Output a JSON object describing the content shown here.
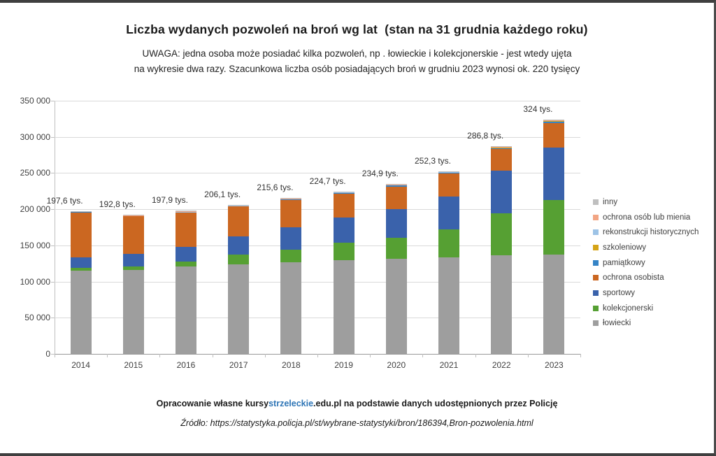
{
  "page": {
    "title": "Liczba wydanych pozwoleń na broń wg lat  (stan na 31 grudnia każdego roku)",
    "subtitle_line1": "UWAGA: jedna osoba może posiadać kilka pozwoleń, np . łowieckie i kolekcjonerskie - jest wtedy ujęta",
    "subtitle_line2": "na wykresie dwa razy. Szacunkowa liczba osób posiadających broń w grudniu 2023 wynosi ok. 220 tysięcy",
    "footer": {
      "line1_prefix": "Opracowanie własne kursy",
      "line1_highlight": "strzeleckie",
      "line1_suffix": ".edu.pl na podstawie danych udostępnionych przez Policję",
      "highlight_color": "#2e75b6",
      "line2": "Źródło: https://statystyka.policja.pl/st/wybrane-statystyki/bron/186394,Bron-pozwolenia.html"
    }
  },
  "chart_data": {
    "type": "bar",
    "stacked": true,
    "title": "Liczba wydanych pozwoleń na broń wg lat (stan na 31 grudnia każdego roku)",
    "xlabel": "",
    "ylabel": "",
    "ylim": [
      0,
      350000
    ],
    "grid": "horizontal",
    "legend_position": "right",
    "categories": [
      "2014",
      "2015",
      "2016",
      "2017",
      "2018",
      "2019",
      "2020",
      "2021",
      "2022",
      "2023"
    ],
    "total_labels": [
      "197,6 tys.",
      "192,8 tys.",
      "197,9 tys.",
      "206,1 tys.",
      "215,6 tys.",
      "224,7 tys.",
      "234,9 tys.",
      "252,3 tys.",
      "286,8 tys.",
      "324 tys."
    ],
    "totals": [
      197600,
      192800,
      197900,
      206100,
      215600,
      224700,
      234900,
      252300,
      286800,
      324000
    ],
    "yticks": [
      {
        "label": "350 000",
        "value": 350000
      },
      {
        "label": "300 000",
        "value": 300000
      },
      {
        "label": "250 000",
        "value": 250000
      },
      {
        "label": "200 000",
        "value": 200000
      },
      {
        "label": "150 000",
        "value": 150000
      },
      {
        "label": "100 000",
        "value": 100000
      },
      {
        "label": "50 000",
        "value": 50000
      },
      {
        "label": "0",
        "value": 0
      }
    ],
    "series": [
      {
        "name": "łowiecki",
        "color": "#9e9e9e",
        "values": [
          115500,
          116500,
          121000,
          123500,
          127000,
          129500,
          131500,
          133500,
          136500,
          137500
        ]
      },
      {
        "name": "kolekcjonerski",
        "color": "#56a033",
        "values": [
          3000,
          4000,
          6500,
          13500,
          17500,
          24000,
          29000,
          39000,
          57500,
          75500
        ]
      },
      {
        "name": "sportowy",
        "color": "#3a62ab",
        "values": [
          15000,
          18000,
          20000,
          25500,
          30500,
          35500,
          39500,
          45500,
          59500,
          72500
        ]
      },
      {
        "name": "ochrona osobista",
        "color": "#cb6721",
        "values": [
          62500,
          52000,
          47500,
          41500,
          37500,
          32500,
          31500,
          31000,
          29500,
          34000
        ]
      },
      {
        "name": "pamiątkowy",
        "color": "#3584c6",
        "values": [
          500,
          600,
          800,
          600,
          1000,
          1100,
          1200,
          1300,
          1400,
          1500
        ]
      },
      {
        "name": "szkoleniowy",
        "color": "#d5a418",
        "values": [
          400,
          500,
          700,
          500,
          900,
          1000,
          1100,
          1100,
          1300,
          1600
        ]
      },
      {
        "name": "rekonstrukcji historycznych",
        "color": "#9dc3e6",
        "values": [
          100,
          100,
          100,
          150,
          150,
          150,
          200,
          200,
          250,
          300
        ]
      },
      {
        "name": "ochrona osób lub mienia",
        "color": "#f2a584",
        "values": [
          200,
          200,
          200,
          250,
          250,
          250,
          300,
          300,
          350,
          400
        ]
      },
      {
        "name": "inny",
        "color": "#bfbfbf",
        "values": [
          400,
          900,
          1100,
          600,
          800,
          700,
          600,
          400,
          500,
          700
        ]
      }
    ]
  }
}
